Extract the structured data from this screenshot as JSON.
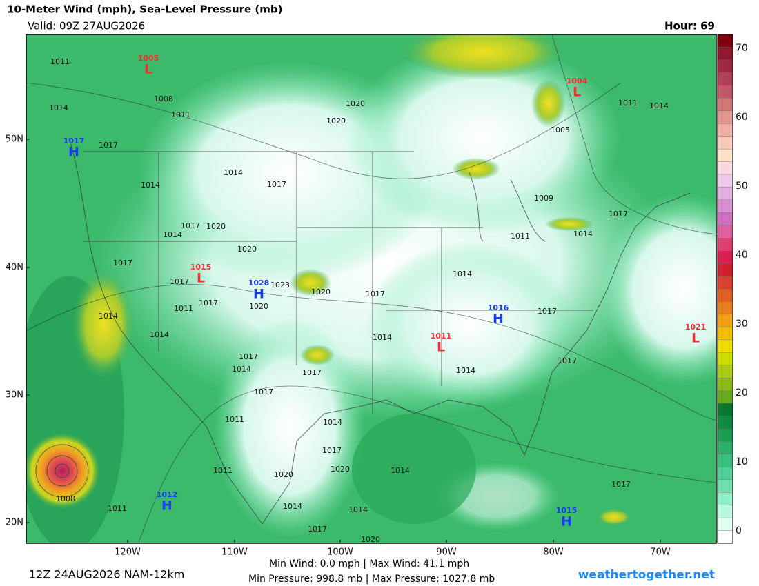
{
  "header": {
    "title": "10-Meter Wind (mph), Sea-Level Pressure (mb)",
    "valid": "Valid: 09Z 27AUG2026",
    "hour": "Hour: 69"
  },
  "latitude_labels": [
    "50N",
    "40N",
    "30N",
    "20N"
  ],
  "longitude_labels": [
    "120W",
    "110W",
    "100W",
    "90W",
    "80W",
    "70W"
  ],
  "colorbar_ticks": [
    "0",
    "10",
    "20",
    "30",
    "40",
    "50",
    "60",
    "70"
  ],
  "pressure_centers": [
    {
      "letter": "L",
      "value": "1005"
    },
    {
      "letter": "L",
      "value": "1004"
    },
    {
      "letter": "H",
      "value": "1017"
    },
    {
      "letter": "L",
      "value": "1015"
    },
    {
      "letter": "H",
      "value": "1028"
    },
    {
      "letter": "H",
      "value": "1016"
    },
    {
      "letter": "L",
      "value": "1011"
    },
    {
      "letter": "L",
      "value": "1021"
    },
    {
      "letter": "H",
      "value": "1012"
    },
    {
      "letter": "H",
      "value": "1015"
    }
  ],
  "isobar_labels": [
    "1011",
    "1014",
    "1008",
    "1011",
    "1017",
    "1020",
    "1020",
    "1005",
    "1011",
    "1014",
    "1014",
    "1017",
    "1014",
    "1017",
    "1020",
    "1014",
    "1020",
    "1009",
    "1017",
    "1011",
    "1014",
    "1017",
    "1017",
    "1023",
    "1020",
    "1017",
    "1014",
    "1020",
    "1017",
    "1011",
    "1017",
    "1014",
    "1014",
    "1014",
    "1017",
    "1014",
    "1017",
    "1014",
    "1017",
    "1017",
    "1011",
    "1014",
    "1017",
    "1020",
    "1014",
    "1011",
    "1020",
    "1017",
    "1008",
    "1011",
    "1014",
    "1014",
    "1017",
    "1020"
  ],
  "footer": {
    "run": "12Z 24AUG2026 NAM-12km",
    "wind_stats": "Min Wind:  0.0 mph | Max Wind:  41.1 mph",
    "pressure_stats": "Min Pressure: 998.8 mb | Max Pressure: 1027.8 mb",
    "source": "weathertogether.net"
  }
}
